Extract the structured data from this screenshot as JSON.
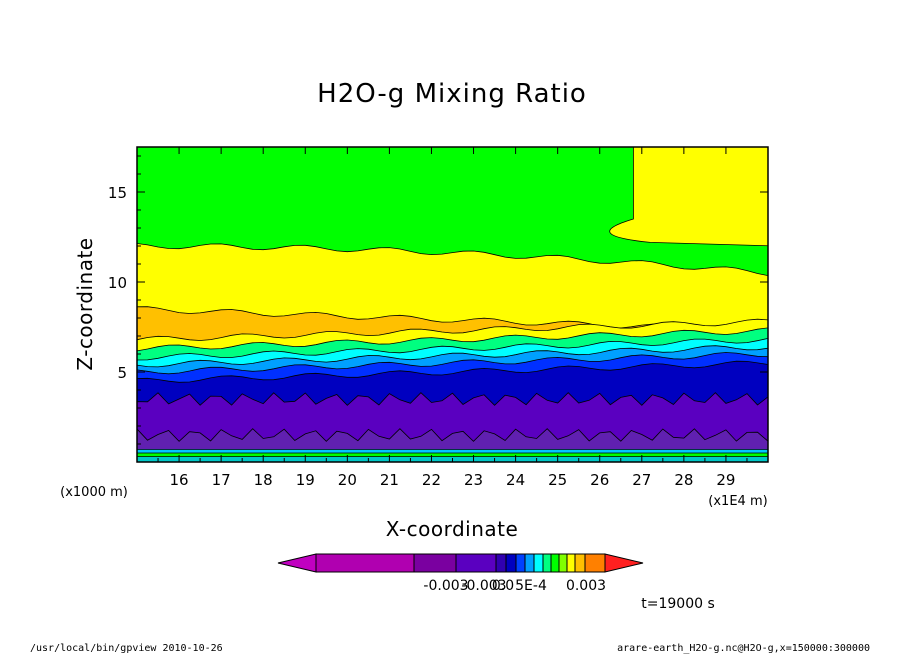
{
  "chart_data": {
    "type": "heatmap",
    "title": "H2O-g Mixing Ratio",
    "xlabel": "X-coordinate",
    "ylabel": "Z-coordinate",
    "x_unit": "(x1E4 m)",
    "y_unit": "(x1000 m)",
    "xlim": [
      15.0,
      30.0
    ],
    "ylim": [
      0,
      17.5
    ],
    "x_ticks": [
      16,
      17,
      18,
      19,
      20,
      21,
      22,
      23,
      24,
      25,
      26,
      27,
      28,
      29
    ],
    "x_tick_labels": [
      "16",
      "17",
      "18",
      "19",
      "20",
      "21",
      "22",
      "23",
      "24",
      "25",
      "26",
      "27",
      "28",
      "29"
    ],
    "y_ticks": [
      5,
      10,
      15
    ],
    "y_tick_labels": [
      "5",
      "10",
      "15"
    ],
    "levels": [
      {
        "z_top": 0.3,
        "color": "#00c8c8"
      },
      {
        "z_top": 0.5,
        "color": "#00ff00"
      },
      {
        "z_top": 0.7,
        "color": "#00c8ff"
      },
      {
        "z_top": 1.5,
        "color": "#6020b0"
      },
      {
        "z_top": 3.5,
        "color": "#5a00c0"
      },
      {
        "z_top": 4.5,
        "color": "#0000c0"
      },
      {
        "z_top": 5.0,
        "color": "#0030ff"
      },
      {
        "z_top": 5.4,
        "color": "#00a0ff"
      },
      {
        "z_top": 5.8,
        "color": "#00ffff"
      },
      {
        "z_top": 6.3,
        "color": "#00ff80"
      },
      {
        "z_top": 6.8,
        "color": "#ffff00"
      },
      {
        "z_top": 8.5,
        "color": "#ffc000"
      },
      {
        "z_top": 12.0,
        "color": "#ffff00"
      },
      {
        "z_top": 17.5,
        "color": "#00ff00"
      }
    ],
    "colorbar": {
      "colors": [
        "#b000b0",
        "#b000b0",
        "#7a00a0",
        "#5a00c0",
        "#3000b0",
        "#0000c0",
        "#0040ff",
        "#00a0ff",
        "#00ffff",
        "#00ff80",
        "#00ff00",
        "#80ff00",
        "#ffff00",
        "#ffc000",
        "#ff8000",
        "#ff2020"
      ],
      "labels": [
        "-0.003",
        "-0.003",
        "0.0",
        "5E-4",
        "0.003"
      ]
    },
    "annotations": {
      "time": "t=19000 s",
      "footer_left": "/usr/local/bin/gpview  2010-10-26",
      "footer_right": "arare-earth_H2O-g.nc@H2O-g,x=150000:300000"
    }
  }
}
